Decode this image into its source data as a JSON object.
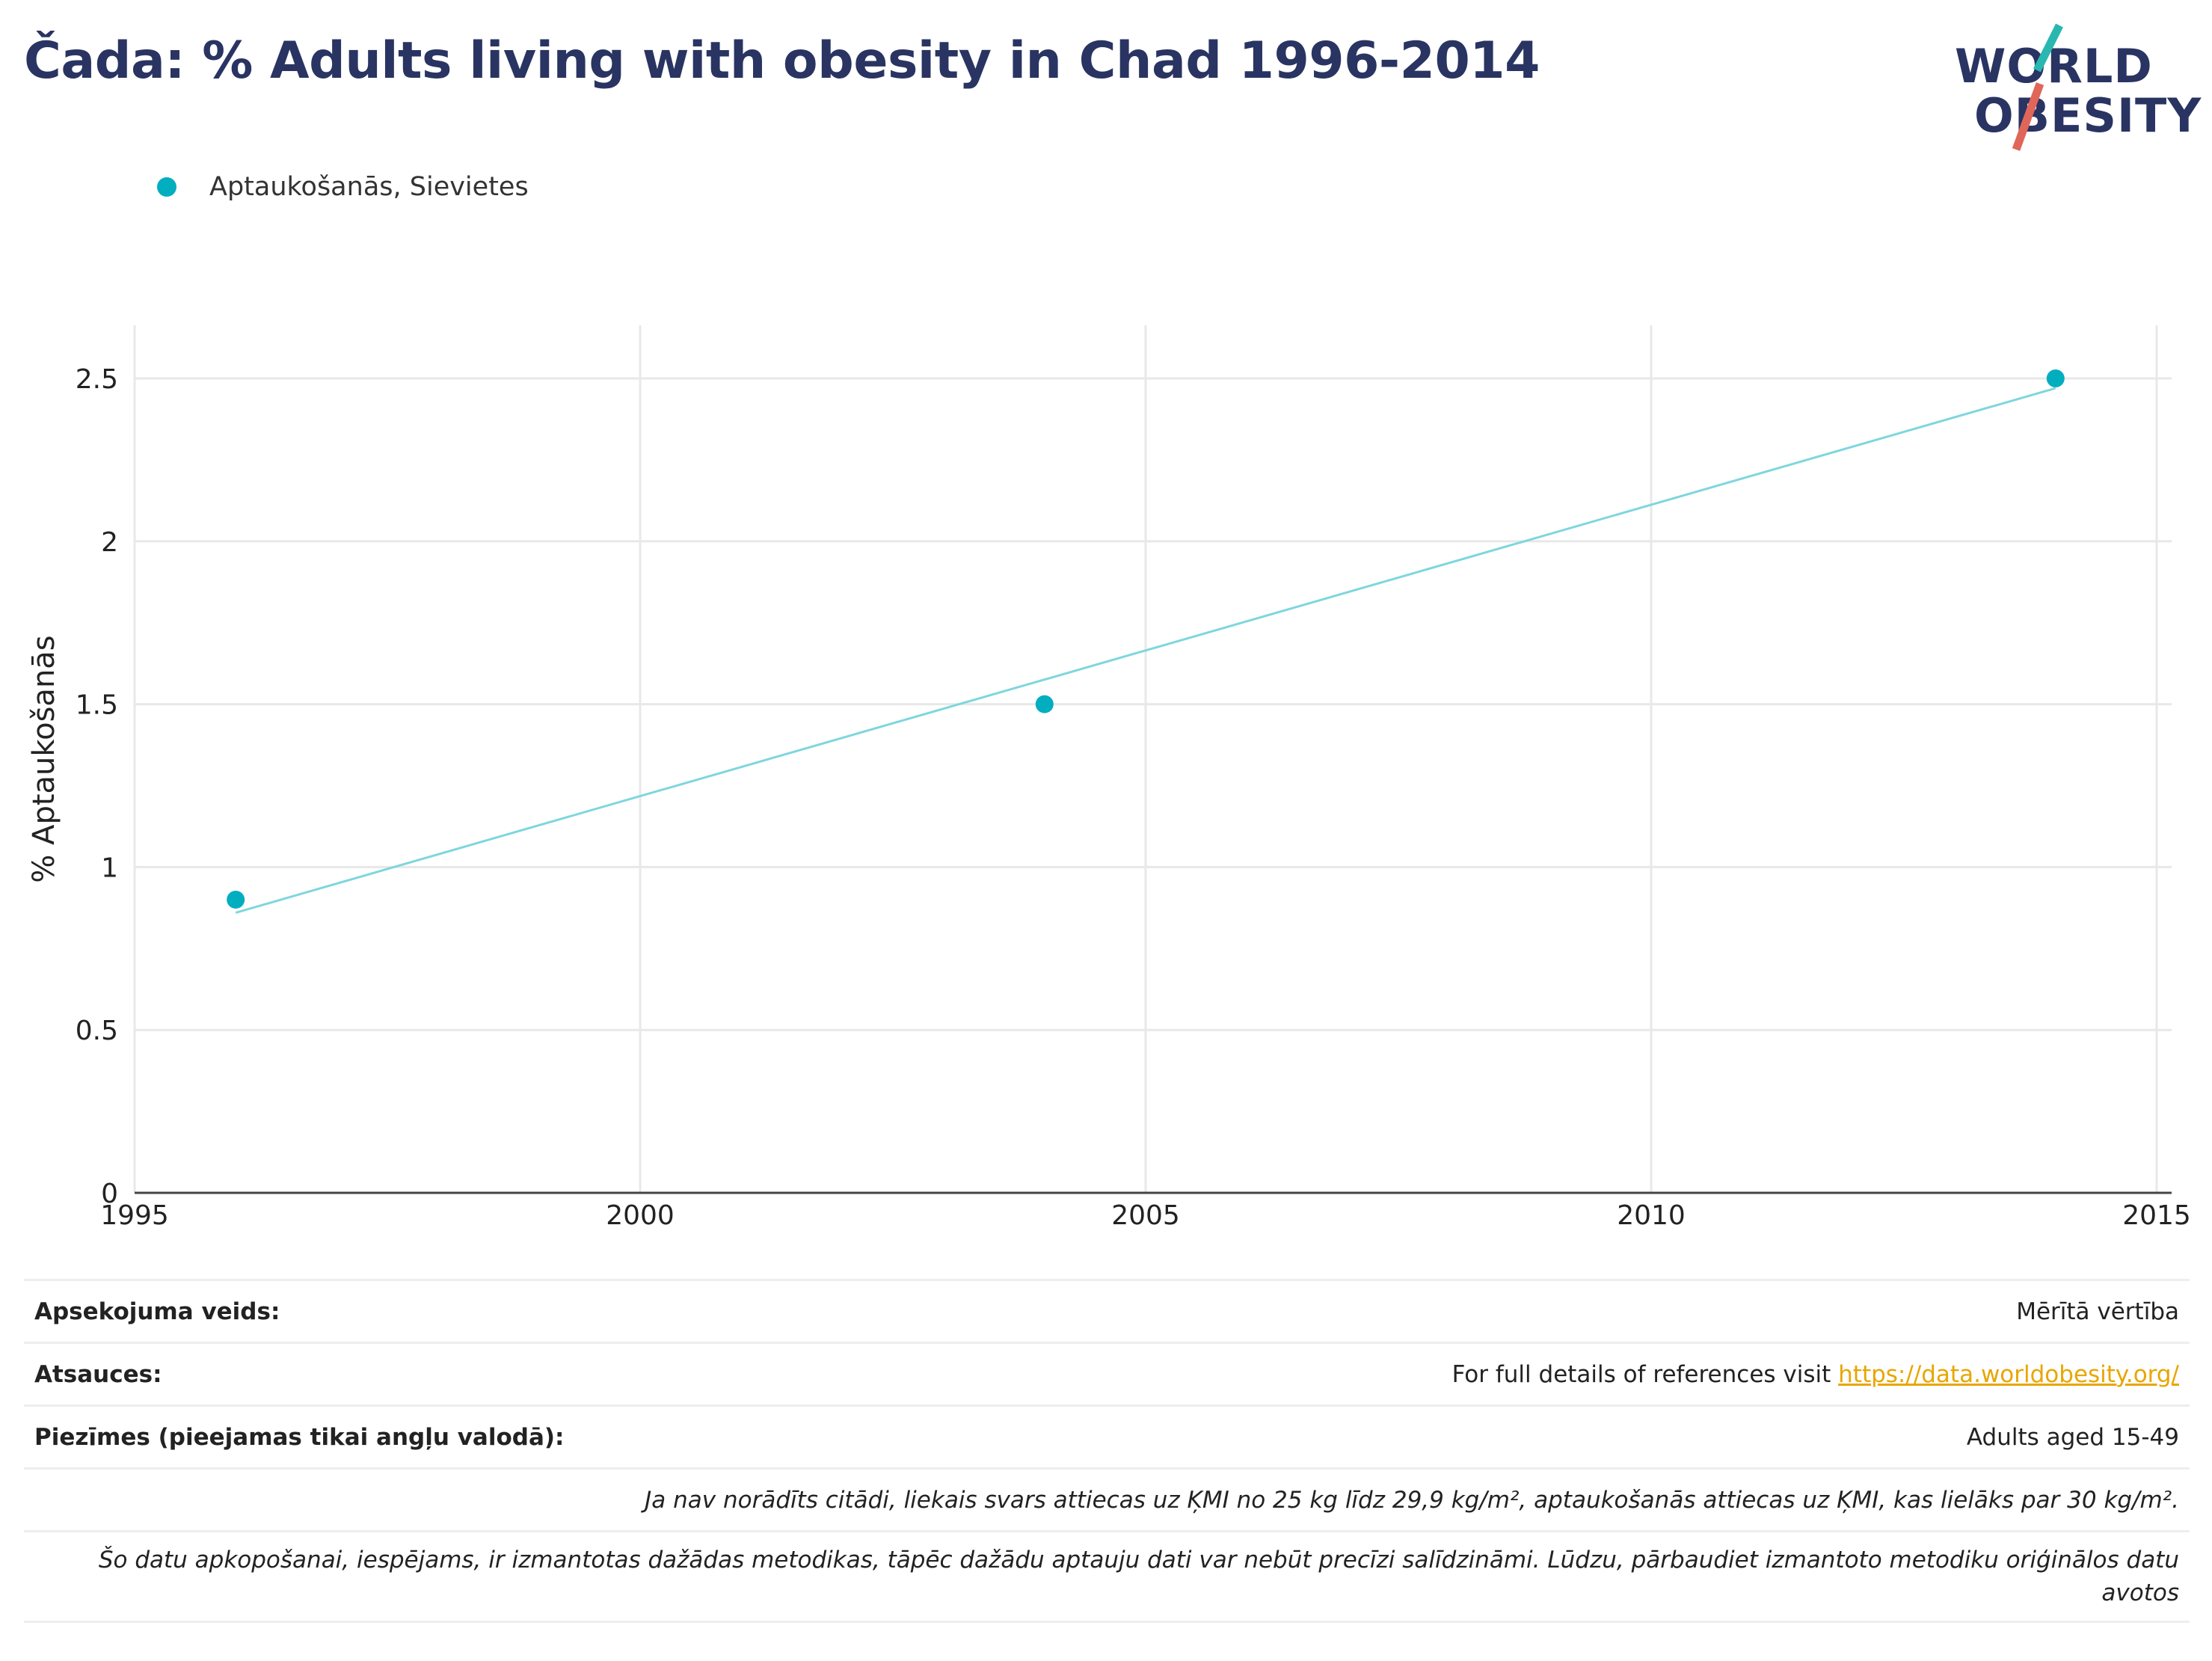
{
  "title": "Čada: % Adults living with obesity in Chad 1996-2014",
  "logo": {
    "line1": "WORLD",
    "line2": "OBESITY",
    "accent_colors": [
      "#2ab7b0",
      "#e0665a"
    ]
  },
  "colors": {
    "series": "#00aec0",
    "trend": "#7fd6de",
    "title": "#293462",
    "grid": "#e8e8e8",
    "link": "#e8a600"
  },
  "chart_data": {
    "type": "scatter",
    "title": "",
    "xlabel": "",
    "ylabel": "% Aptaukošanās",
    "xlim": [
      1995,
      2015
    ],
    "ylim": [
      0,
      2.65
    ],
    "x_ticks": [
      "1995",
      "2000",
      "2005",
      "2010",
      "2015"
    ],
    "y_ticks": [
      "0",
      "0.5",
      "1",
      "1.5",
      "2",
      "2.5"
    ],
    "grid": true,
    "legend": "top-left",
    "series": [
      {
        "name": "Aptaukošanās, Sievietes",
        "points": [
          {
            "x": 1996,
            "y": 0.9
          },
          {
            "x": 2004,
            "y": 1.5
          },
          {
            "x": 2014,
            "y": 2.5
          }
        ]
      }
    ],
    "trendline": {
      "x": [
        1996,
        2014
      ],
      "y": [
        0.86,
        2.47
      ]
    }
  },
  "info": {
    "survey_label": "Apsekojuma veids:",
    "survey_value": "Mērītā vērtība",
    "refs_label": "Atsauces:",
    "refs_text": "For full details of references visit ",
    "refs_link": "https://data.worldobesity.org/",
    "notes_label": "Piezīmes (pieejamas tikai angļu valodā):",
    "notes_value": "Adults aged 15-49",
    "def_note": "Ja nav norādīts citādi, liekais svars attiecas uz ĶMI no 25 kg līdz 29,9 kg/m², aptaukošanās attiecas uz ĶMI, kas lielāks par 30 kg/m².",
    "method_note": "Šo datu apkopošanai, iespējams, ir izmantotas dažādas metodikas, tāpēc dažādu aptauju dati var nebūt precīzi salīdzināmi. Lūdzu, pārbaudiet izmantoto metodiku oriģinālos datu avotos"
  }
}
